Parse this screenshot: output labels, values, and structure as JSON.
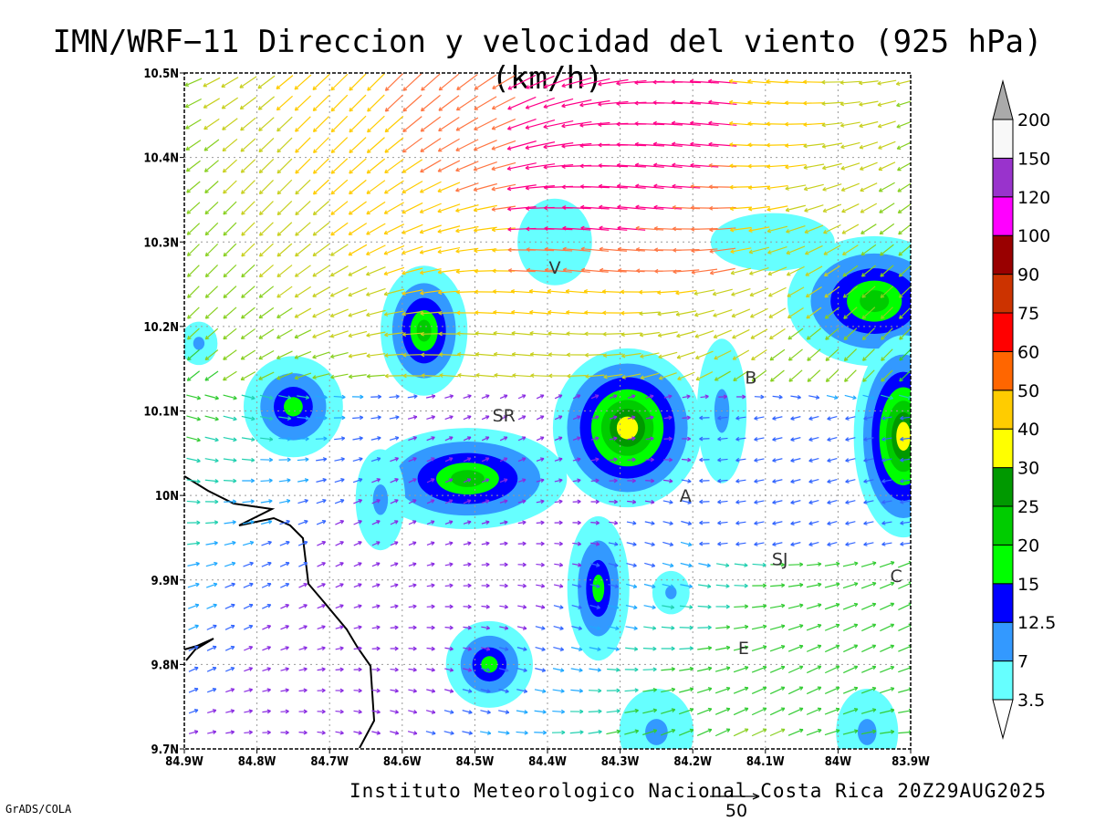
{
  "title": "IMN/WRF−11 Direccion y velocidad del viento (925 hPa)(km/h)",
  "footer": "Instituto Meteorologico Nacional Costa Rica  20Z29AUG2025",
  "credit": "GrADS/COLA",
  "reference_vector": {
    "label": "50",
    "speed": 50
  },
  "map": {
    "lon_range": [
      -84.9,
      -83.9
    ],
    "lat_range": [
      9.7,
      10.5
    ],
    "x_ticks": [
      {
        "value": -84.9,
        "label": "84.9W"
      },
      {
        "value": -84.8,
        "label": "84.8W"
      },
      {
        "value": -84.7,
        "label": "84.7W"
      },
      {
        "value": -84.6,
        "label": "84.6W"
      },
      {
        "value": -84.5,
        "label": "84.5W"
      },
      {
        "value": -84.4,
        "label": "84.4W"
      },
      {
        "value": -84.3,
        "label": "84.3W"
      },
      {
        "value": -84.2,
        "label": "84.2W"
      },
      {
        "value": -84.1,
        "label": "84.1W"
      },
      {
        "value": -84.0,
        "label": "84W"
      },
      {
        "value": -83.9,
        "label": "83.9W"
      }
    ],
    "y_ticks": [
      {
        "value": 9.7,
        "label": "9.7N"
      },
      {
        "value": 9.8,
        "label": "9.8N"
      },
      {
        "value": 9.9,
        "label": "9.9N"
      },
      {
        "value": 10.0,
        "label": "10N"
      },
      {
        "value": 10.1,
        "label": "10.1N"
      },
      {
        "value": 10.2,
        "label": "10.2N"
      },
      {
        "value": 10.3,
        "label": "10.3N"
      },
      {
        "value": 10.4,
        "label": "10.4N"
      },
      {
        "value": 10.5,
        "label": "10.5N"
      }
    ],
    "grid": true
  },
  "cities": [
    {
      "label": "V",
      "lon": -84.39,
      "lat": 10.27
    },
    {
      "label": "SR",
      "lon": -84.46,
      "lat": 10.095
    },
    {
      "label": "B",
      "lon": -84.12,
      "lat": 10.14
    },
    {
      "label": "A",
      "lon": -84.21,
      "lat": 10.0
    },
    {
      "label": "SJ",
      "lon": -84.08,
      "lat": 9.925
    },
    {
      "label": "C",
      "lon": -83.92,
      "lat": 9.905
    },
    {
      "label": "E",
      "lon": -84.13,
      "lat": 9.82
    }
  ],
  "colorbar": {
    "levels": [
      {
        "label": "3.5",
        "color": "#66ffff"
      },
      {
        "label": "7",
        "color": "#3399ff"
      },
      {
        "label": "12.5",
        "color": "#0000ff"
      },
      {
        "label": "15",
        "color": "#00ff00"
      },
      {
        "label": "20",
        "color": "#00cc00"
      },
      {
        "label": "25",
        "color": "#009900"
      },
      {
        "label": "30",
        "color": "#ffff00"
      },
      {
        "label": "40",
        "color": "#ffcc00"
      },
      {
        "label": "50",
        "color": "#ff6600"
      },
      {
        "label": "60",
        "color": "#ff0000"
      },
      {
        "label": "75",
        "color": "#cc3300"
      },
      {
        "label": "90",
        "color": "#990000"
      },
      {
        "label": "100",
        "color": "#ff00ff"
      },
      {
        "label": "120",
        "color": "#9933cc"
      },
      {
        "label": "150",
        "color": "#f8f8f8"
      },
      {
        "label": "200",
        "color": "#aaaaaa"
      }
    ]
  },
  "precip_cells": [
    {
      "lon": -84.57,
      "lat": 10.195,
      "peak": 20,
      "rx": 0.035,
      "ry": 0.045
    },
    {
      "lon": -84.75,
      "lat": 10.105,
      "peak": 17,
      "rx": 0.04,
      "ry": 0.035
    },
    {
      "lon": -84.51,
      "lat": 10.02,
      "peak": 21,
      "rx": 0.08,
      "ry": 0.035
    },
    {
      "lon": -84.29,
      "lat": 10.08,
      "peak": 32,
      "rx": 0.06,
      "ry": 0.055
    },
    {
      "lon": -84.33,
      "lat": 9.89,
      "peak": 19,
      "rx": 0.025,
      "ry": 0.05
    },
    {
      "lon": -84.48,
      "lat": 9.8,
      "peak": 19,
      "rx": 0.035,
      "ry": 0.03
    },
    {
      "lon": -83.95,
      "lat": 10.23,
      "peak": 23,
      "rx": 0.07,
      "ry": 0.045
    },
    {
      "lon": -83.91,
      "lat": 10.07,
      "peak": 32,
      "rx": 0.04,
      "ry": 0.07
    },
    {
      "lon": -84.63,
      "lat": 9.995,
      "peak": 12,
      "rx": 0.02,
      "ry": 0.035
    },
    {
      "lon": -84.23,
      "lat": 9.885,
      "peak": 11,
      "rx": 0.015,
      "ry": 0.015
    },
    {
      "lon": -84.16,
      "lat": 10.1,
      "peak": 10,
      "rx": 0.02,
      "ry": 0.05
    },
    {
      "lon": -84.25,
      "lat": 9.72,
      "peak": 10,
      "rx": 0.03,
      "ry": 0.03
    },
    {
      "lon": -83.96,
      "lat": 9.72,
      "peak": 9,
      "rx": 0.025,
      "ry": 0.03
    },
    {
      "lon": -84.39,
      "lat": 10.3,
      "peak": 5,
      "rx": 0.03,
      "ry": 0.03
    },
    {
      "lon": -84.88,
      "lat": 10.18,
      "peak": 8,
      "rx": 0.015,
      "ry": 0.015
    },
    {
      "lon": -84.09,
      "lat": 10.3,
      "peak": 6,
      "rx": 0.05,
      "ry": 0.02
    }
  ]
}
